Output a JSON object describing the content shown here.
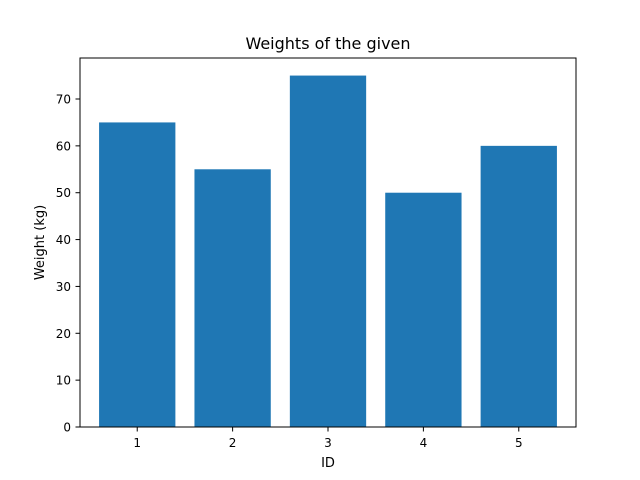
{
  "chart_data": {
    "type": "bar",
    "title": "Weights of the given",
    "xlabel": "ID",
    "ylabel": "Weight (kg)",
    "categories": [
      "1",
      "2",
      "3",
      "4",
      "5"
    ],
    "values": [
      65,
      55,
      75,
      50,
      60
    ],
    "ylim": [
      0,
      78.75
    ],
    "yticks": [
      0,
      10,
      20,
      30,
      40,
      50,
      60,
      70
    ],
    "bar_color": "#1f77b4",
    "grid": false,
    "legend": "none"
  }
}
